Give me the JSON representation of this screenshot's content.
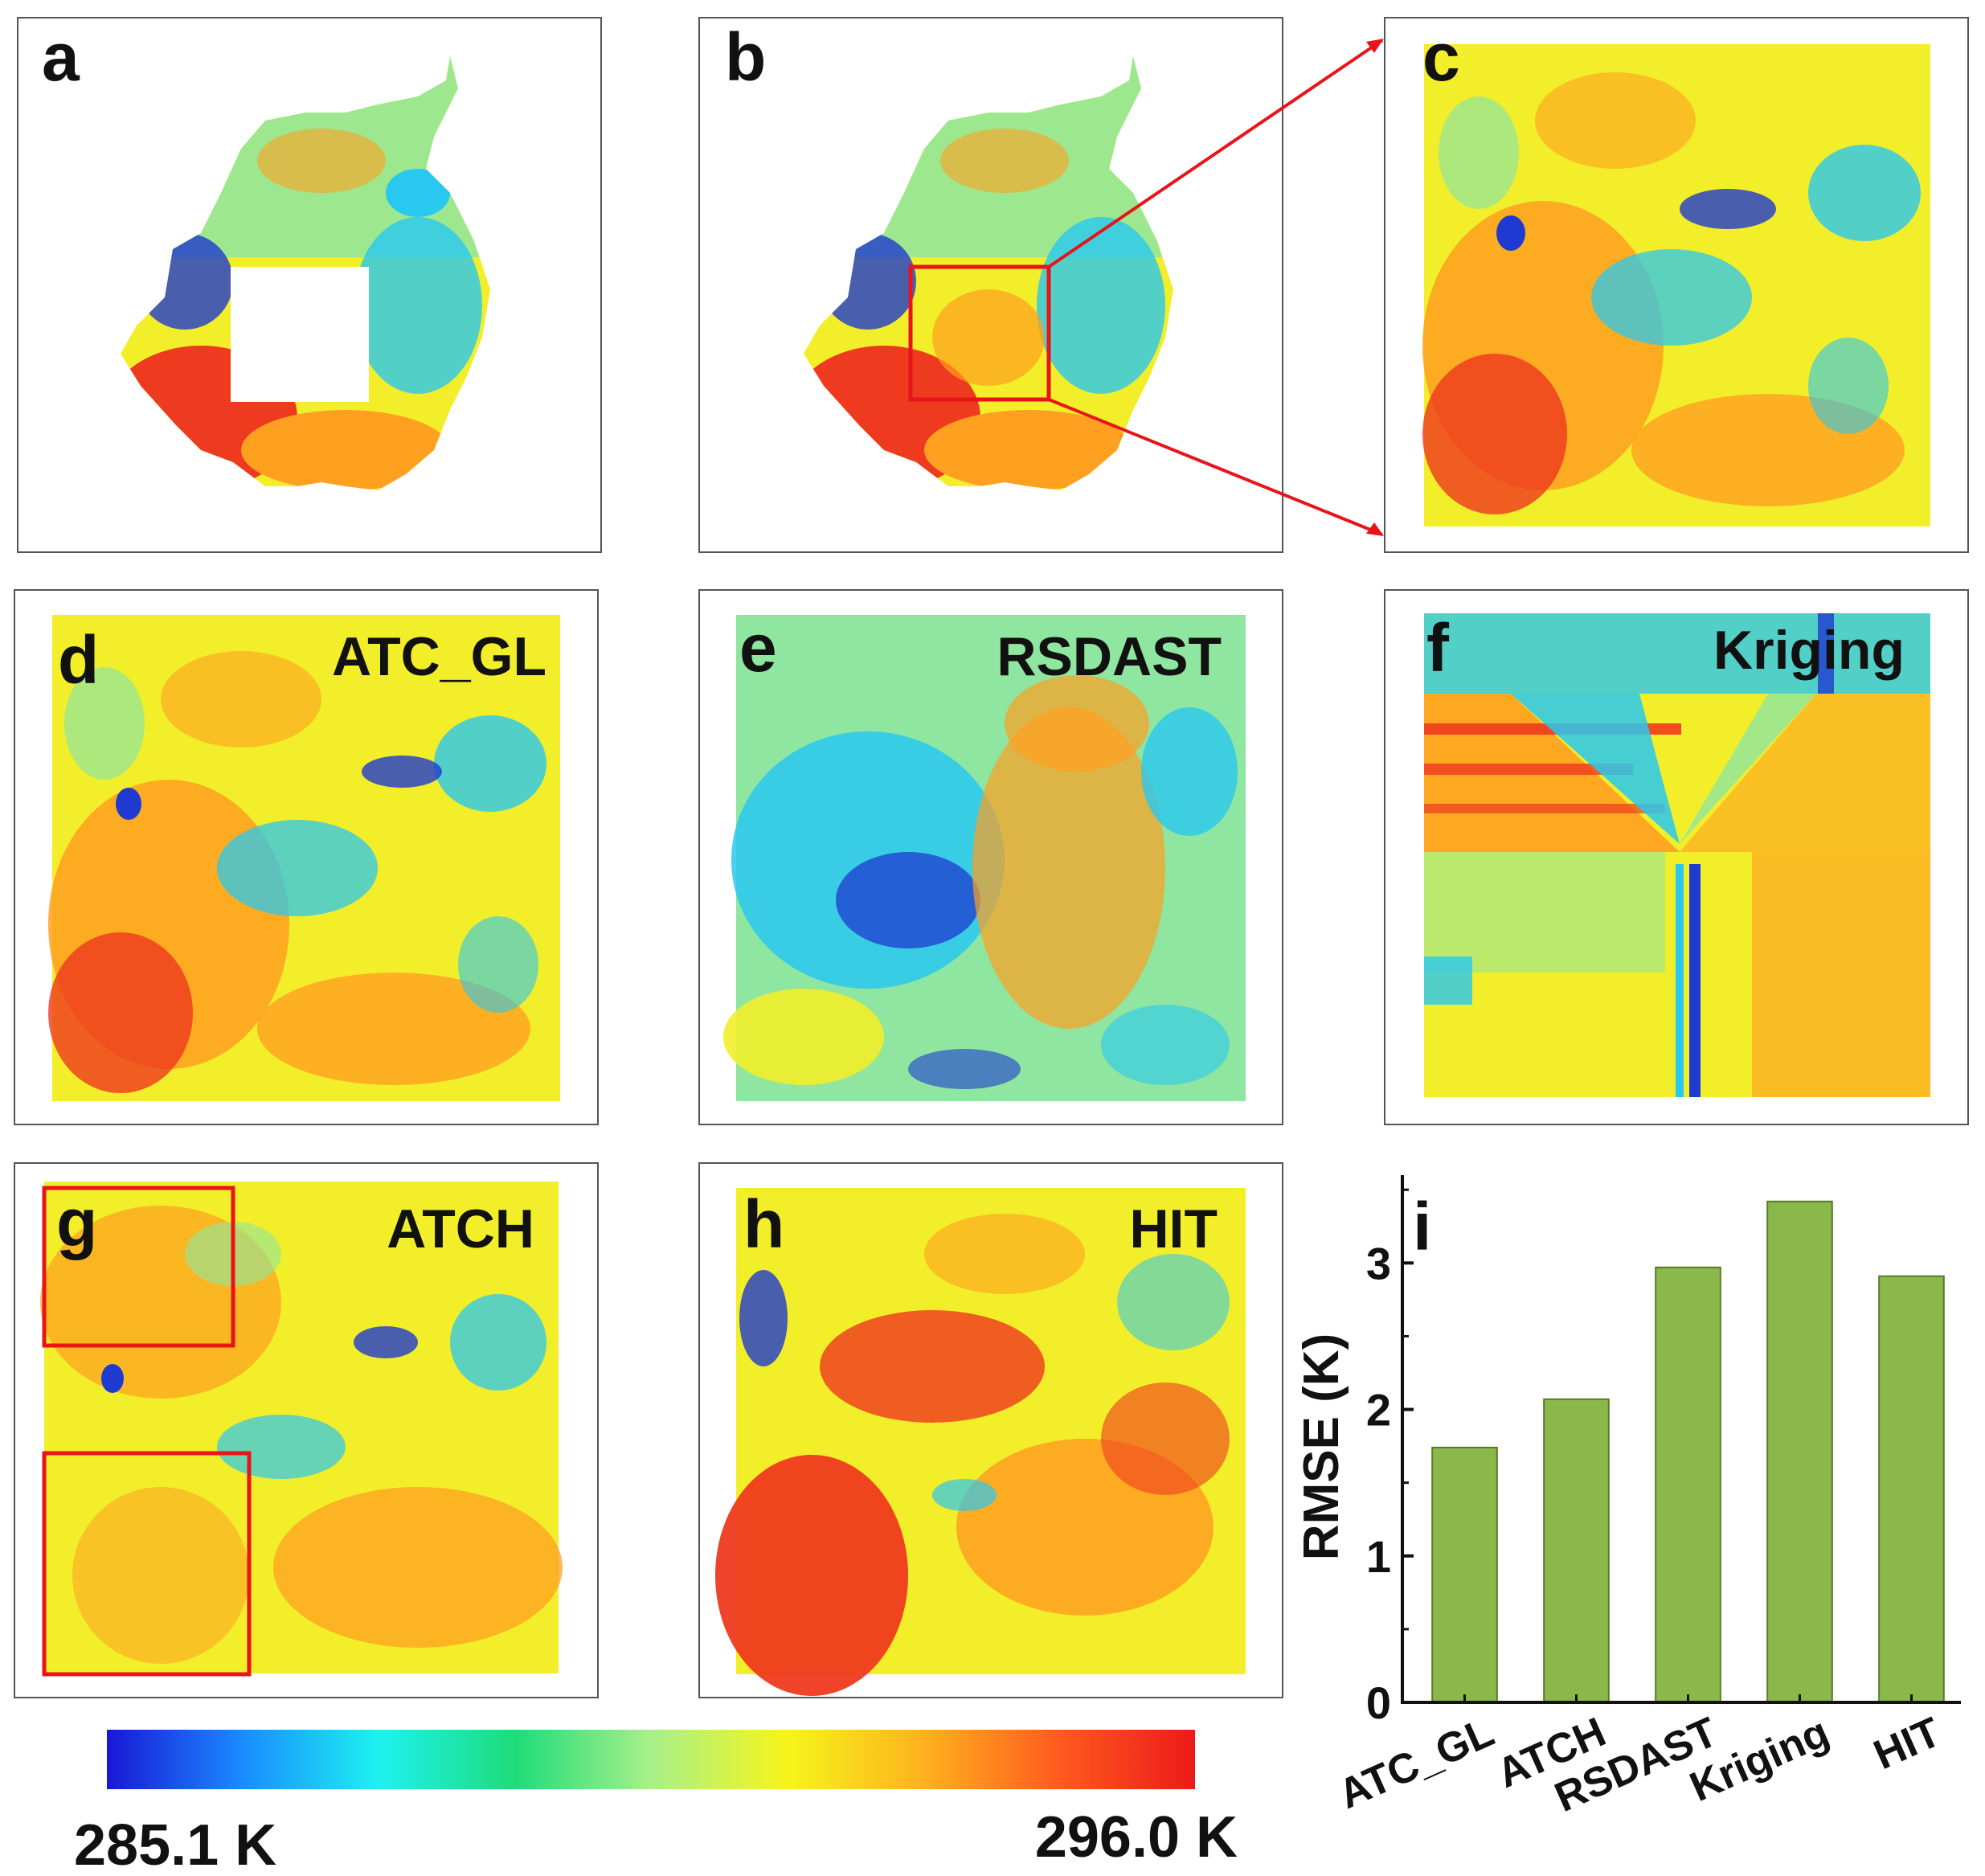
{
  "panels": {
    "a": {
      "letter": "a",
      "title": ""
    },
    "b": {
      "letter": "b",
      "title": ""
    },
    "c": {
      "letter": "c",
      "title": ""
    },
    "d": {
      "letter": "d",
      "title": "ATC_GL"
    },
    "e": {
      "letter": "e",
      "title": "RSDAST"
    },
    "f": {
      "letter": "f",
      "title": "Kriging"
    },
    "g": {
      "letter": "g",
      "title": "ATCH"
    },
    "h": {
      "letter": "h",
      "title": "HIT"
    },
    "i": {
      "letter": "i"
    }
  },
  "colorbar": {
    "min_label": "285.1 K",
    "max_label": "296.0 K",
    "colors": [
      "#1a17d6",
      "#1a8cff",
      "#1ef2f0",
      "#1edc7a",
      "#a8f08a",
      "#f5f51a",
      "#ffb21e",
      "#ff5a1e",
      "#ec1a1a"
    ]
  },
  "palette": {
    "blue": "#1f3ad0",
    "cyan": "#29c8f0",
    "green": "#8ee6a0",
    "yellow": "#f2ee2a",
    "orange": "#ffa020",
    "red": "#ee3a1e",
    "bar": "#8ab84a",
    "highlight": "#e8141a"
  },
  "chart_data": {
    "type": "bar",
    "categories": [
      "ATC_GL",
      "ATCH",
      "RSDAST",
      "Kriging",
      "HIT"
    ],
    "values": [
      1.74,
      2.07,
      2.97,
      3.42,
      2.91
    ],
    "title": "",
    "xlabel": "",
    "ylabel": "RMSE (K)",
    "ylim": [
      0,
      3.6
    ],
    "yticks": [
      "0",
      "1",
      "2",
      "3"
    ]
  }
}
